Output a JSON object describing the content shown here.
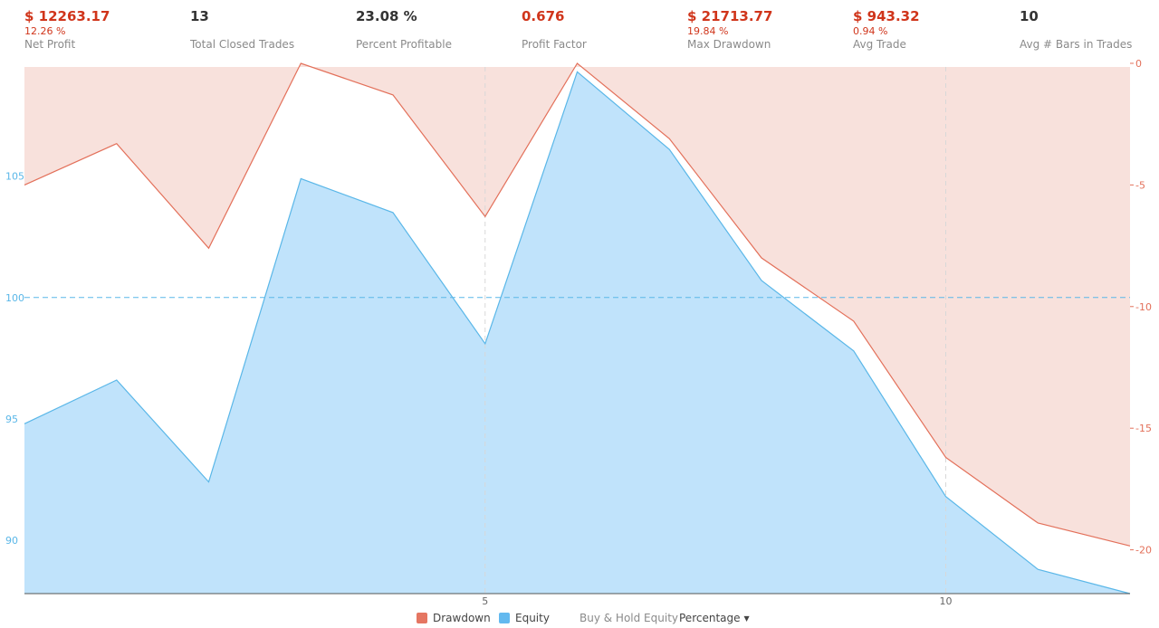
{
  "stats": [
    {
      "value": "$ 12263.17",
      "sub": "12.26 %",
      "label": "Net Profit",
      "negative": true
    },
    {
      "value": "13",
      "sub": "",
      "label": "Total Closed Trades",
      "negative": false
    },
    {
      "value": "23.08 %",
      "sub": "",
      "label": "Percent Profitable",
      "negative": false
    },
    {
      "value": "0.676",
      "sub": "",
      "label": "Profit Factor",
      "negative": true
    },
    {
      "value": "$ 21713.77",
      "sub": "19.84 %",
      "label": "Max Drawdown",
      "negative": true
    },
    {
      "value": "$ 943.32",
      "sub": "0.94 %",
      "label": "Avg Trade",
      "negative": true
    },
    {
      "value": "10",
      "sub": "",
      "label": "Avg # Bars in Trades",
      "negative": false
    }
  ],
  "legend": {
    "drawdown": "Drawdown",
    "equity": "Equity",
    "buy_hold": "Buy & Hold Equity",
    "mode": "Percentage"
  },
  "colors": {
    "equity_line": "#5ab7e8",
    "equity_fill": "#c0e3fb",
    "drawdown_line": "#e3705a",
    "drawdown_fill": "#f8e1dc",
    "drawdown_swatch": "#e57662",
    "equity_swatch": "#63b9ef",
    "negative_text": "#d0351b"
  },
  "chart_data": {
    "type": "area",
    "x": [
      0,
      1,
      2,
      3,
      4,
      5,
      6,
      7,
      8,
      9,
      10,
      11,
      12
    ],
    "x_ticks": [
      5,
      10
    ],
    "series": [
      {
        "name": "Equity",
        "axis": "left",
        "values": [
          94.8,
          96.6,
          92.4,
          104.9,
          103.5,
          98.1,
          109.3,
          106.1,
          100.7,
          97.8,
          91.8,
          88.8,
          87.8
        ]
      },
      {
        "name": "Drawdown",
        "axis": "right",
        "values": [
          -5.0,
          -3.3,
          -7.6,
          0.0,
          -1.3,
          -6.3,
          0.0,
          -3.1,
          -8.0,
          -10.6,
          -16.2,
          -18.9,
          -19.84
        ]
      }
    ],
    "left_axis": {
      "ticks": [
        90,
        95,
        100,
        105
      ],
      "ylim": [
        87.8,
        109.5
      ]
    },
    "right_axis": {
      "ticks": [
        0,
        -5,
        -10,
        -15,
        -20
      ],
      "ylim": [
        -21.8,
        -0.15
      ]
    },
    "reference_line": 100,
    "grid": false,
    "legend_position": "bottom-center"
  }
}
